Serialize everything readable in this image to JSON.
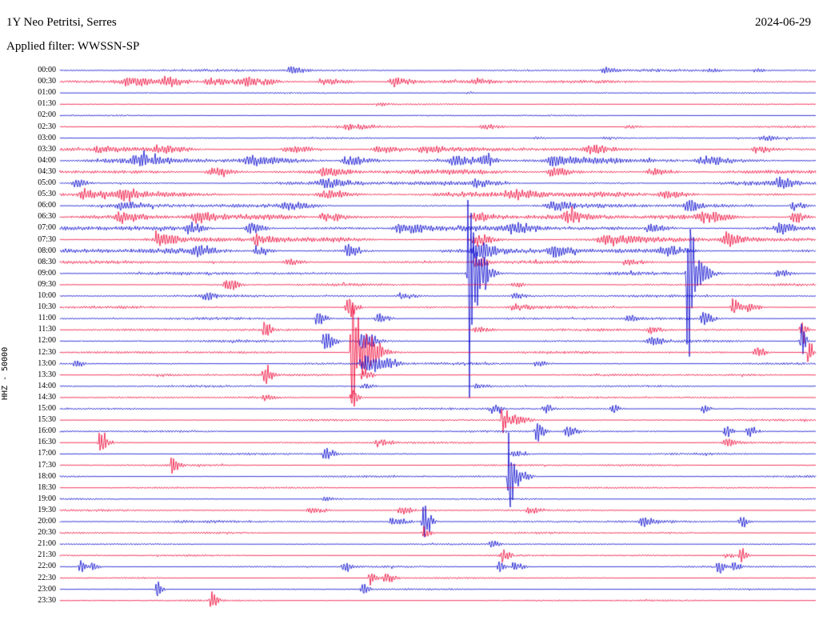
{
  "header": {
    "station": "1Y Neo Petritsi, Serres",
    "date": "2024-06-29",
    "filter_label": "Applied filter: WWSSN-SP",
    "scale_label": "HHZ - 50000"
  },
  "chart_data": {
    "type": "line",
    "subtype": "helicorder-seismogram",
    "title": "1Y Neo Petritsi, Serres",
    "date": "2024-06-29",
    "filter": "WWSSN-SP",
    "channel_scale": "HHZ - 50000",
    "minutes_per_row": 30,
    "colors": {
      "blue": "#0000cd",
      "red": "#ee0033"
    },
    "rows": [
      {
        "label": "00:00",
        "noise": 1.6,
        "bursts": [
          [
            0.305,
            5,
            0.012
          ],
          [
            0.72,
            3.5,
            0.01
          ],
          [
            0.86,
            2.5,
            0.008
          ],
          [
            0.92,
            3,
            0.008
          ]
        ]
      },
      {
        "label": "00:30",
        "noise": 2.2,
        "bursts": [
          [
            0.09,
            5,
            0.02
          ],
          [
            0.14,
            6,
            0.015
          ],
          [
            0.2,
            5,
            0.03
          ],
          [
            0.25,
            6,
            0.02
          ],
          [
            0.35,
            4,
            0.02
          ],
          [
            0.44,
            6.5,
            0.015
          ],
          [
            0.55,
            3,
            0.01
          ]
        ]
      },
      {
        "label": "01:00",
        "noise": 0.9,
        "bursts": [
          [
            0.54,
            2,
            0.005
          ]
        ]
      },
      {
        "label": "01:30",
        "noise": 0.9,
        "bursts": [
          [
            0.42,
            2,
            0.01
          ]
        ]
      },
      {
        "label": "02:00",
        "noise": 0.9,
        "bursts": []
      },
      {
        "label": "02:30",
        "noise": 1.3,
        "bursts": [
          [
            0.38,
            3,
            0.02
          ],
          [
            0.56,
            3,
            0.015
          ],
          [
            0.75,
            2,
            0.01
          ]
        ]
      },
      {
        "label": "03:00",
        "noise": 1.1,
        "bursts": [
          [
            0.63,
            2,
            0.01
          ],
          [
            0.72,
            2,
            0.01
          ],
          [
            0.93,
            3,
            0.012
          ]
        ]
      },
      {
        "label": "03:30",
        "noise": 2.6,
        "bursts": [
          [
            0.05,
            4,
            0.015
          ],
          [
            0.13,
            4,
            0.02
          ],
          [
            0.3,
            4,
            0.02
          ],
          [
            0.42,
            5,
            0.02
          ],
          [
            0.48,
            4,
            0.015
          ],
          [
            0.7,
            5,
            0.015
          ],
          [
            0.92,
            5,
            0.012
          ]
        ]
      },
      {
        "label": "04:00",
        "noise": 3.4,
        "bursts": [
          [
            0.1,
            5,
            0.02
          ],
          [
            0.25,
            5,
            0.02
          ],
          [
            0.38,
            6,
            0.02
          ],
          [
            0.52,
            6,
            0.02
          ],
          [
            0.56,
            7,
            0.01
          ],
          [
            0.65,
            5,
            0.02
          ],
          [
            0.85,
            5,
            0.02
          ]
        ]
      },
      {
        "label": "04:30",
        "noise": 3.0,
        "bursts": [
          [
            0.2,
            5,
            0.02
          ],
          [
            0.35,
            5,
            0.02
          ],
          [
            0.65,
            6,
            0.015
          ],
          [
            0.78,
            4,
            0.02
          ]
        ]
      },
      {
        "label": "05:00",
        "noise": 2.6,
        "bursts": [
          [
            0.02,
            6,
            0.01
          ],
          [
            0.35,
            5,
            0.02
          ],
          [
            0.55,
            4,
            0.02
          ],
          [
            0.95,
            6,
            0.012
          ]
        ]
      },
      {
        "label": "05:30",
        "noise": 3.4,
        "bursts": [
          [
            0.03,
            6,
            0.015
          ],
          [
            0.08,
            8,
            0.012
          ],
          [
            0.35,
            6,
            0.02
          ],
          [
            0.6,
            5,
            0.02
          ],
          [
            0.8,
            5,
            0.02
          ]
        ]
      },
      {
        "label": "06:00",
        "noise": 2.6,
        "bursts": [
          [
            0.08,
            5,
            0.015
          ],
          [
            0.3,
            4,
            0.02
          ],
          [
            0.65,
            6,
            0.015
          ],
          [
            0.83,
            8,
            0.01
          ],
          [
            0.97,
            6,
            0.01
          ]
        ]
      },
      {
        "label": "06:30",
        "noise": 3.4,
        "bursts": [
          [
            0.08,
            6,
            0.015
          ],
          [
            0.18,
            7,
            0.012
          ],
          [
            0.35,
            6,
            0.02
          ],
          [
            0.55,
            6,
            0.02
          ],
          [
            0.67,
            6,
            0.015
          ],
          [
            0.85,
            6,
            0.015
          ],
          [
            0.97,
            8,
            0.01
          ]
        ]
      },
      {
        "label": "07:00",
        "noise": 3.4,
        "bursts": [
          [
            0.17,
            7,
            0.012
          ],
          [
            0.25,
            8,
            0.012
          ],
          [
            0.45,
            6,
            0.02
          ],
          [
            0.6,
            6,
            0.02
          ],
          [
            0.78,
            6,
            0.015
          ],
          [
            0.95,
            7,
            0.012
          ]
        ]
      },
      {
        "label": "07:30",
        "noise": 3.4,
        "bursts": [
          [
            0.13,
            7,
            0.012
          ],
          [
            0.26,
            7,
            0.012
          ],
          [
            0.55,
            9,
            0.012
          ],
          [
            0.72,
            6,
            0.02
          ],
          [
            0.88,
            8,
            0.012
          ]
        ]
      },
      {
        "label": "08:00",
        "noise": 3.4,
        "bursts": [
          [
            0.18,
            7,
            0.012
          ],
          [
            0.26,
            8,
            0.01
          ],
          [
            0.38,
            10,
            0.01
          ],
          [
            0.55,
            8,
            0.015
          ],
          [
            0.65,
            7,
            0.015
          ],
          [
            0.8,
            6,
            0.02
          ]
        ]
      },
      {
        "label": "08:30",
        "noise": 2.0,
        "bursts": [
          [
            0.3,
            4,
            0.015
          ],
          [
            0.55,
            10,
            0.008
          ],
          [
            0.75,
            4,
            0.015
          ]
        ]
      },
      {
        "label": "09:00",
        "noise": 2.0,
        "bursts": [
          [
            0.54,
            170,
            0.003
          ],
          [
            0.545,
            45,
            0.012
          ],
          [
            0.83,
            110,
            0.0035
          ],
          [
            0.835,
            30,
            0.012
          ],
          [
            0.95,
            5,
            0.01
          ]
        ]
      },
      {
        "label": "09:30",
        "noise": 1.6,
        "bursts": [
          [
            0.22,
            9,
            0.01
          ],
          [
            0.6,
            3,
            0.01
          ]
        ]
      },
      {
        "label": "10:00",
        "noise": 1.6,
        "bursts": [
          [
            0.19,
            6,
            0.008
          ],
          [
            0.45,
            4,
            0.015
          ],
          [
            0.6,
            3,
            0.01
          ]
        ]
      },
      {
        "label": "10:30",
        "noise": 1.6,
        "bursts": [
          [
            0.38,
            14,
            0.008
          ],
          [
            0.6,
            4,
            0.015
          ],
          [
            0.89,
            13,
            0.006
          ],
          [
            0.91,
            6,
            0.01
          ]
        ]
      },
      {
        "label": "11:00",
        "noise": 1.6,
        "bursts": [
          [
            0.34,
            9,
            0.008
          ],
          [
            0.42,
            6,
            0.01
          ],
          [
            0.75,
            4,
            0.01
          ],
          [
            0.85,
            9,
            0.008
          ]
        ]
      },
      {
        "label": "11:30",
        "noise": 1.6,
        "bursts": [
          [
            0.27,
            14,
            0.005
          ],
          [
            0.55,
            4,
            0.015
          ],
          [
            0.78,
            5,
            0.01
          ],
          [
            0.98,
            12,
            0.005
          ]
        ]
      },
      {
        "label": "12:00",
        "noise": 1.6,
        "bursts": [
          [
            0.35,
            13,
            0.008
          ],
          [
            0.4,
            12,
            0.012
          ],
          [
            0.78,
            6,
            0.01
          ],
          [
            0.98,
            26,
            0.004
          ]
        ]
      },
      {
        "label": "12:30",
        "noise": 1.6,
        "bursts": [
          [
            0.386,
            95,
            0.005
          ],
          [
            0.4,
            30,
            0.015
          ],
          [
            0.92,
            8,
            0.008
          ],
          [
            0.99,
            20,
            0.004
          ]
        ]
      },
      {
        "label": "13:00",
        "noise": 1.6,
        "bursts": [
          [
            0.02,
            6,
            0.006
          ],
          [
            0.4,
            12,
            0.01
          ],
          [
            0.42,
            8,
            0.015
          ],
          [
            0.63,
            4,
            0.01
          ]
        ]
      },
      {
        "label": "13:30",
        "noise": 1.6,
        "bursts": [
          [
            0.27,
            12,
            0.006
          ],
          [
            0.4,
            8,
            0.008
          ]
        ]
      },
      {
        "label": "14:00",
        "noise": 1.3,
        "bursts": [
          [
            0.4,
            4,
            0.01
          ],
          [
            0.55,
            3,
            0.01
          ]
        ]
      },
      {
        "label": "14:30",
        "noise": 1.3,
        "bursts": [
          [
            0.27,
            6,
            0.006
          ],
          [
            0.386,
            15,
            0.005
          ]
        ]
      },
      {
        "label": "15:00",
        "noise": 1.3,
        "bursts": [
          [
            0.57,
            6,
            0.008
          ],
          [
            0.64,
            8,
            0.006
          ],
          [
            0.73,
            8,
            0.006
          ],
          [
            0.85,
            6,
            0.006
          ]
        ]
      },
      {
        "label": "15:30",
        "noise": 1.3,
        "bursts": [
          [
            0.585,
            28,
            0.005
          ],
          [
            0.6,
            9,
            0.012
          ]
        ]
      },
      {
        "label": "16:00",
        "noise": 1.3,
        "bursts": [
          [
            0.63,
            14,
            0.006
          ],
          [
            0.67,
            10,
            0.008
          ],
          [
            0.88,
            9,
            0.006
          ],
          [
            0.91,
            8,
            0.008
          ]
        ]
      },
      {
        "label": "16:30",
        "noise": 1.3,
        "bursts": [
          [
            0.053,
            20,
            0.006
          ],
          [
            0.42,
            5,
            0.01
          ],
          [
            0.88,
            5,
            0.01
          ]
        ]
      },
      {
        "label": "17:00",
        "noise": 1.3,
        "bursts": [
          [
            0.35,
            9,
            0.008
          ],
          [
            0.6,
            4,
            0.01
          ]
        ]
      },
      {
        "label": "17:30",
        "noise": 1.3,
        "bursts": [
          [
            0.148,
            12,
            0.006
          ]
        ]
      },
      {
        "label": "18:00",
        "noise": 1.3,
        "bursts": [
          [
            0.593,
            70,
            0.003
          ],
          [
            0.6,
            16,
            0.01
          ]
        ]
      },
      {
        "label": "18:30",
        "noise": 1.1,
        "bursts": []
      },
      {
        "label": "19:00",
        "noise": 1.1,
        "bursts": [
          [
            0.35,
            3,
            0.01
          ]
        ]
      },
      {
        "label": "19:30",
        "noise": 1.3,
        "bursts": [
          [
            0.33,
            4,
            0.015
          ],
          [
            0.45,
            5,
            0.01
          ],
          [
            0.62,
            3,
            0.01
          ]
        ]
      },
      {
        "label": "20:00",
        "noise": 1.6,
        "bursts": [
          [
            0.481,
            26,
            0.006
          ],
          [
            0.44,
            7,
            0.012
          ],
          [
            0.77,
            5,
            0.01
          ],
          [
            0.9,
            9,
            0.006
          ]
        ]
      },
      {
        "label": "20:30",
        "noise": 1.3,
        "bursts": [
          [
            0.481,
            9,
            0.006
          ]
        ]
      },
      {
        "label": "21:00",
        "noise": 1.1,
        "bursts": [
          [
            0.57,
            5,
            0.006
          ]
        ]
      },
      {
        "label": "21:30",
        "noise": 1.1,
        "bursts": [
          [
            0.585,
            9,
            0.006
          ],
          [
            0.88,
            4,
            0.008
          ],
          [
            0.9,
            12,
            0.005
          ]
        ]
      },
      {
        "label": "22:00",
        "noise": 1.3,
        "bursts": [
          [
            0.026,
            10,
            0.005
          ],
          [
            0.042,
            8,
            0.005
          ],
          [
            0.375,
            8,
            0.006
          ],
          [
            0.58,
            9,
            0.005
          ],
          [
            0.6,
            6,
            0.008
          ],
          [
            0.87,
            9,
            0.005
          ],
          [
            0.89,
            7,
            0.006
          ]
        ]
      },
      {
        "label": "22:30",
        "noise": 1.1,
        "bursts": [
          [
            0.41,
            11,
            0.005
          ],
          [
            0.43,
            8,
            0.008
          ]
        ]
      },
      {
        "label": "23:00",
        "noise": 1.1,
        "bursts": [
          [
            0.127,
            11,
            0.005
          ],
          [
            0.4,
            9,
            0.006
          ]
        ]
      },
      {
        "label": "23:30",
        "noise": 1.1,
        "bursts": [
          [
            0.2,
            13,
            0.005
          ]
        ]
      }
    ]
  }
}
